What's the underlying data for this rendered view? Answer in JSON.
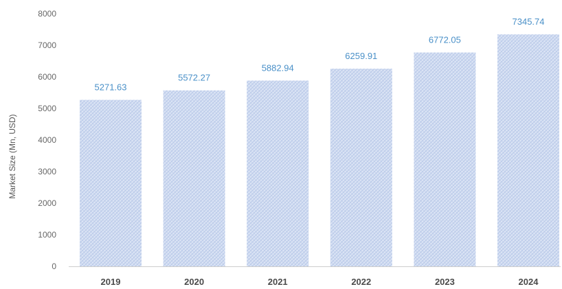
{
  "chart_data": {
    "type": "bar",
    "title": "",
    "xlabel": "",
    "ylabel": "Market Size (Mn, USD)",
    "categories": [
      "2019",
      "2020",
      "2021",
      "2022",
      "2023",
      "2024"
    ],
    "values": [
      5271.63,
      5572.27,
      5882.94,
      6259.91,
      6772.05,
      7345.74
    ],
    "value_labels": [
      "5271.63",
      "5572.27",
      "5882.94",
      "6259.91",
      "6772.05",
      "7345.74"
    ],
    "ylim": [
      0,
      8000
    ],
    "yticks": [
      0,
      1000,
      2000,
      3000,
      4000,
      5000,
      6000,
      7000,
      8000
    ],
    "grid": false,
    "legend": "none",
    "colors": {
      "bar_fill": "#dbe4f5",
      "bar_hatch": "#b8c8e8",
      "value_label": "#4a90c8",
      "axis_line": "#cccccc"
    }
  }
}
